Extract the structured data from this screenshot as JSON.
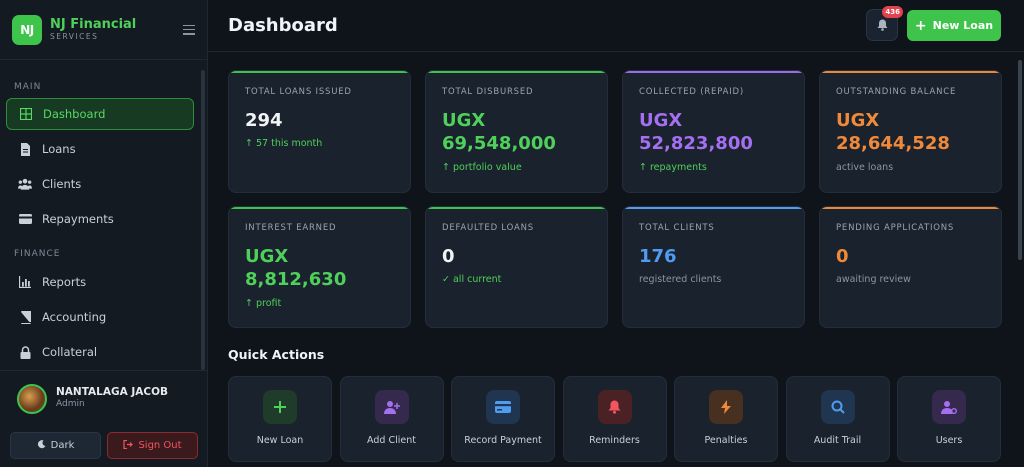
{
  "brand": {
    "logo_text": "NJ",
    "name": "NJ Financial",
    "sub": "SERVICES"
  },
  "sidebar": {
    "main_label": "MAIN",
    "finance_label": "FINANCE",
    "items": [
      {
        "label": "Dashboard",
        "icon": "grid-icon",
        "active": true
      },
      {
        "label": "Loans",
        "icon": "document-icon"
      },
      {
        "label": "Clients",
        "icon": "users-icon"
      },
      {
        "label": "Repayments",
        "icon": "card-icon"
      },
      {
        "label": "Reports",
        "icon": "chart-icon"
      },
      {
        "label": "Accounting",
        "icon": "book-icon"
      },
      {
        "label": "Collateral",
        "icon": "lock-icon"
      }
    ]
  },
  "user": {
    "name": "NANTALAGA JACOB",
    "role": "Admin"
  },
  "footer": {
    "dark_label": "Dark",
    "signout_label": "Sign Out"
  },
  "header": {
    "title": "Dashboard",
    "notifications": "436",
    "new_loan_label": "New Loan"
  },
  "stats": [
    {
      "label": "TOTAL LOANS ISSUED",
      "value": "294",
      "sub": "↑ 57 this month",
      "value_color": "#f1f4f7",
      "sub_color": "#4fd05a",
      "bar_color": "#3ec44a"
    },
    {
      "label": "TOTAL DISBURSED",
      "value": "UGX 69,548,000",
      "sub": "↑ portfolio value",
      "value_color": "#4fd05a",
      "sub_color": "#4fd05a",
      "bar_color": "#3ec44a"
    },
    {
      "label": "COLLECTED (REPAID)",
      "value": "UGX 52,823,800",
      "sub": "↑ repayments",
      "value_color": "#a46ff0",
      "sub_color": "#4fd05a",
      "bar_color": "#9b6ce8"
    },
    {
      "label": "OUTSTANDING BALANCE",
      "value": "UGX 28,644,528",
      "sub": "active loans",
      "value_color": "#f08a3a",
      "sub_color": "#8a95a3",
      "bar_color": "#e8883a"
    },
    {
      "label": "INTEREST EARNED",
      "value": "UGX 8,812,630",
      "sub": "↑ profit",
      "value_color": "#4fd05a",
      "sub_color": "#4fd05a",
      "bar_color": "#3ec44a"
    },
    {
      "label": "DEFAULTED LOANS",
      "value": "0",
      "sub": "✓ all current",
      "value_color": "#f1f4f7",
      "sub_color": "#4fd05a",
      "bar_color": "#3ec44a"
    },
    {
      "label": "TOTAL CLIENTS",
      "value": "176",
      "sub": "registered clients",
      "value_color": "#4f9cf0",
      "sub_color": "#8a95a3",
      "bar_color": "#4f9cf0"
    },
    {
      "label": "PENDING APPLICATIONS",
      "value": "0",
      "sub": "awaiting review",
      "value_color": "#f08a3a",
      "sub_color": "#8a95a3",
      "bar_color": "#e8883a"
    }
  ],
  "quick_actions": {
    "title": "Quick Actions",
    "items": [
      {
        "label": "New Loan",
        "icon": "plus-icon",
        "bg": "#1f3b2a",
        "fg": "#4fd05a"
      },
      {
        "label": "Add Client",
        "icon": "user-plus-icon",
        "bg": "#352a4d",
        "fg": "#a46ff0"
      },
      {
        "label": "Record Payment",
        "icon": "card-icon",
        "bg": "#1f3550",
        "fg": "#4f9cf0"
      },
      {
        "label": "Reminders",
        "icon": "bell-icon",
        "bg": "#4a2226",
        "fg": "#f2555e"
      },
      {
        "label": "Penalties",
        "icon": "bolt-icon",
        "bg": "#47301f",
        "fg": "#f08a3a"
      },
      {
        "label": "Audit Trail",
        "icon": "search-icon",
        "bg": "#1f3550",
        "fg": "#4f9cf0"
      },
      {
        "label": "Users",
        "icon": "user-gear-icon",
        "bg": "#352a4d",
        "fg": "#a46ff0"
      }
    ]
  }
}
